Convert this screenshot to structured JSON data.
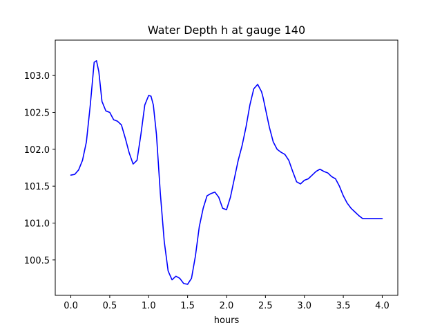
{
  "chart_data": {
    "type": "line",
    "title": "Water Depth h at gauge 140",
    "xlabel": "hours",
    "ylabel": "",
    "xlim": [
      -0.2,
      4.2
    ],
    "ylim": [
      100.02,
      103.48
    ],
    "xticks": [
      0.0,
      0.5,
      1.0,
      1.5,
      2.0,
      2.5,
      3.0,
      3.5,
      4.0
    ],
    "xtick_labels": [
      "0.0",
      "0.5",
      "1.0",
      "1.5",
      "2.0",
      "2.5",
      "3.0",
      "3.5",
      "4.0"
    ],
    "yticks": [
      100.5,
      101.0,
      101.5,
      102.0,
      102.5,
      103.0
    ],
    "ytick_labels": [
      "100.5",
      "101.0",
      "101.5",
      "102.0",
      "102.5",
      "103.0"
    ],
    "grid": false,
    "series": [
      {
        "color": "#0000ff",
        "x": [
          0.0,
          0.05,
          0.1,
          0.15,
          0.2,
          0.25,
          0.3,
          0.33,
          0.36,
          0.4,
          0.45,
          0.5,
          0.55,
          0.6,
          0.65,
          0.7,
          0.75,
          0.8,
          0.85,
          0.9,
          0.95,
          1.0,
          1.03,
          1.06,
          1.1,
          1.15,
          1.2,
          1.25,
          1.3,
          1.35,
          1.4,
          1.45,
          1.5,
          1.55,
          1.6,
          1.65,
          1.7,
          1.75,
          1.8,
          1.85,
          1.9,
          1.95,
          2.0,
          2.05,
          2.1,
          2.15,
          2.2,
          2.25,
          2.3,
          2.35,
          2.4,
          2.45,
          2.47,
          2.5,
          2.55,
          2.6,
          2.65,
          2.7,
          2.75,
          2.8,
          2.85,
          2.9,
          2.95,
          3.0,
          3.05,
          3.1,
          3.15,
          3.2,
          3.25,
          3.3,
          3.35,
          3.4,
          3.45,
          3.5,
          3.55,
          3.6,
          3.65,
          3.7,
          3.75,
          3.8,
          3.85,
          3.9,
          3.95,
          4.0
        ],
        "y": [
          101.65,
          101.66,
          101.72,
          101.85,
          102.1,
          102.6,
          103.18,
          103.2,
          103.05,
          102.65,
          102.52,
          102.5,
          102.4,
          102.38,
          102.33,
          102.15,
          101.95,
          101.8,
          101.85,
          102.2,
          102.6,
          102.73,
          102.72,
          102.6,
          102.2,
          101.4,
          100.75,
          100.35,
          100.23,
          100.28,
          100.25,
          100.18,
          100.17,
          100.25,
          100.55,
          100.95,
          101.2,
          101.37,
          101.4,
          101.42,
          101.35,
          101.2,
          101.18,
          101.35,
          101.6,
          101.85,
          102.05,
          102.3,
          102.6,
          102.82,
          102.88,
          102.78,
          102.7,
          102.55,
          102.3,
          102.1,
          102.0,
          101.96,
          101.93,
          101.85,
          101.7,
          101.56,
          101.53,
          101.58,
          101.6,
          101.65,
          101.7,
          101.73,
          101.7,
          101.68,
          101.63,
          101.6,
          101.5,
          101.37,
          101.27,
          101.2,
          101.15,
          101.1,
          101.06,
          101.06,
          101.06,
          101.06,
          101.06,
          101.06
        ]
      }
    ]
  }
}
